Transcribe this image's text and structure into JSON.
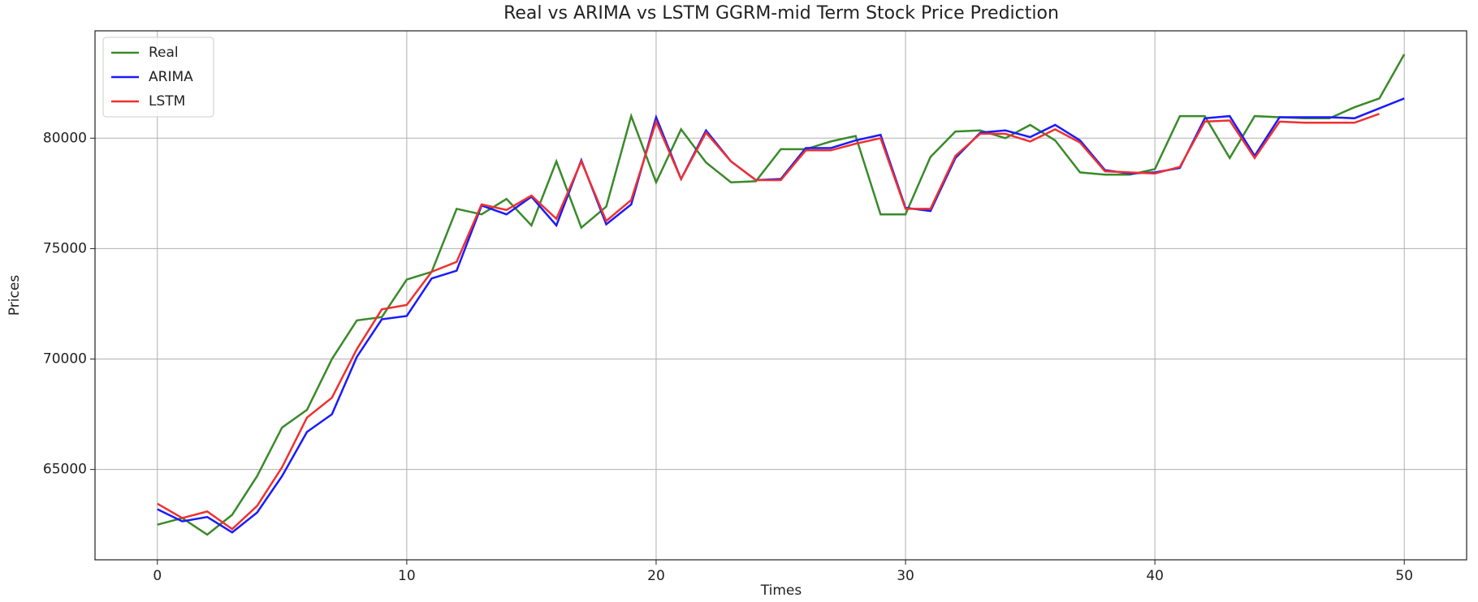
{
  "chart_data": {
    "type": "line",
    "title": "Real vs ARIMA vs LSTM GGRM-mid Term Stock Price Prediction",
    "x_label": "Times",
    "y_label": "Prices",
    "x": [
      0,
      1,
      2,
      3,
      4,
      5,
      6,
      7,
      8,
      9,
      10,
      11,
      12,
      13,
      14,
      15,
      16,
      17,
      18,
      19,
      20,
      21,
      22,
      23,
      24,
      25,
      26,
      27,
      28,
      29,
      30,
      31,
      32,
      33,
      34,
      35,
      36,
      37,
      38,
      39,
      40,
      41,
      42,
      43,
      44,
      45,
      46,
      47,
      48,
      49,
      50
    ],
    "series": [
      {
        "name": "Real",
        "color": "#3a8a2a",
        "values": [
          62500,
          62800,
          62050,
          62950,
          64700,
          66900,
          67700,
          70000,
          71750,
          71900,
          73600,
          73950,
          76800,
          76550,
          77250,
          76050,
          78950,
          75950,
          76900,
          81000,
          78000,
          80400,
          78900,
          78000,
          78050,
          79500,
          79500,
          79850,
          80100,
          76550,
          76550,
          79150,
          80300,
          80350,
          80000,
          80600,
          79900,
          78450,
          78350,
          78350,
          78600,
          81000,
          81000,
          79100,
          81000,
          80950,
          80900,
          80900,
          81400,
          81800,
          83800
        ]
      },
      {
        "name": "ARIMA",
        "color": "#1a1aff",
        "values": [
          63200,
          62650,
          62850,
          62150,
          63050,
          64700,
          66700,
          67500,
          70100,
          71800,
          71950,
          73650,
          74000,
          76950,
          76550,
          77350,
          76050,
          79000,
          76100,
          77000,
          80950,
          78150,
          80350,
          78950,
          78100,
          78150,
          79550,
          79550,
          79900,
          80150,
          76850,
          76700,
          79100,
          80250,
          80350,
          80050,
          80600,
          79900,
          78550,
          78400,
          78450,
          78650,
          80900,
          81000,
          79200,
          80950,
          80950,
          80950,
          80900,
          81350,
          81800
        ]
      },
      {
        "name": "LSTM",
        "color": "#f03030",
        "values": [
          63450,
          62800,
          63100,
          62300,
          63350,
          65100,
          67350,
          68250,
          70450,
          72250,
          72450,
          73950,
          74400,
          77000,
          76750,
          77400,
          76350,
          78950,
          76250,
          77200,
          80750,
          78150,
          80250,
          78950,
          78100,
          78100,
          79450,
          79450,
          79750,
          80000,
          76800,
          76800,
          79200,
          80200,
          80200,
          79850,
          80400,
          79800,
          78500,
          78450,
          78400,
          78700,
          80750,
          80800,
          79100,
          80750,
          80700,
          80700,
          80700,
          81100,
          null
        ]
      }
    ],
    "xlim": [
      -2.5,
      52.5
    ],
    "ylim": [
      60910,
      84860
    ],
    "xticks": [
      0,
      10,
      20,
      30,
      40,
      50
    ],
    "yticks": [
      65000,
      70000,
      75000,
      80000
    ],
    "grid": true,
    "legend": "upper left"
  }
}
